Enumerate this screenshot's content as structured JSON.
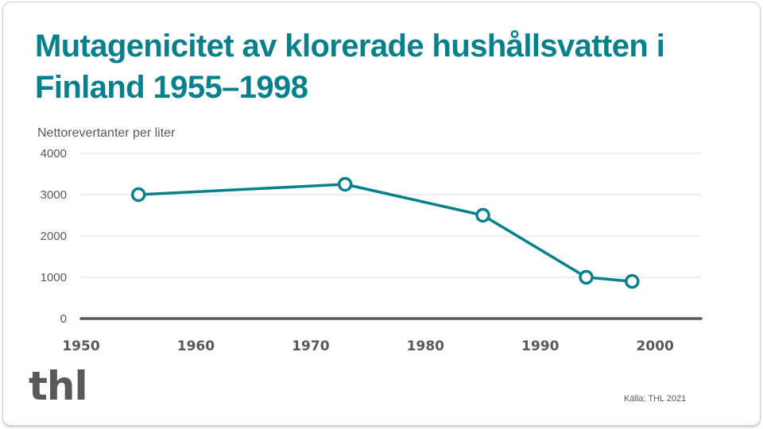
{
  "title": "Mutagenicitet av klorerade hushållsvatten i Finland 1955–1998",
  "y_axis_label": "Nettorevertanter per liter",
  "source": "Källa: THL 2021",
  "logo": "thl",
  "colors": {
    "title": "#08808b",
    "series": "#08808b",
    "axis": "#595959",
    "grid": "#d9dfe0",
    "text": "#595959"
  },
  "chart_data": {
    "type": "line",
    "title": "Mutagenicitet av klorerade hushållsvatten i Finland 1955–1998",
    "xlabel": "",
    "ylabel": "Nettorevertanter per liter",
    "x": [
      1955,
      1973,
      1985,
      1994,
      1998
    ],
    "series": [
      {
        "name": "Mutagenicitet",
        "values": [
          3000,
          3250,
          2500,
          1000,
          900
        ]
      }
    ],
    "xlim": [
      1950,
      2004
    ],
    "ylim": [
      0,
      4000
    ],
    "x_ticks": [
      1950,
      1960,
      1970,
      1980,
      1990,
      2000
    ],
    "y_ticks": [
      0,
      1000,
      2000,
      3000,
      4000
    ],
    "grid": true,
    "legend": "none",
    "markers": "hollow-circle"
  }
}
